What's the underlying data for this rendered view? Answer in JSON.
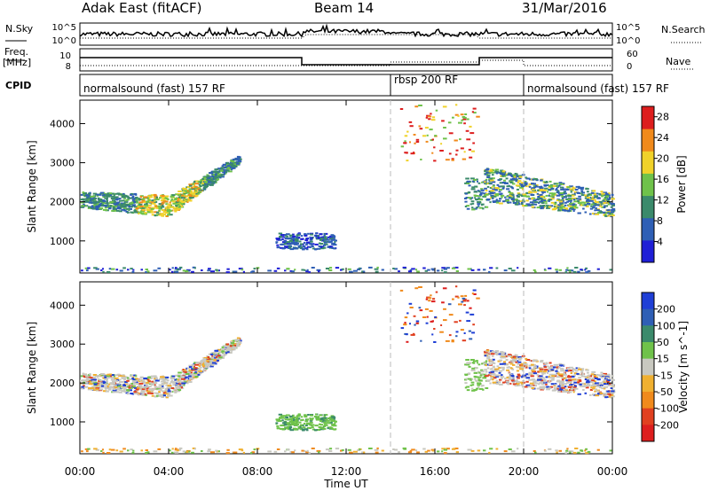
{
  "header": {
    "title": "Adak East (fitACF)",
    "beam": "Beam 14",
    "date": "31/Mar/2016"
  },
  "noise_panel": {
    "left_label": "N.Sky",
    "right_label": "N.Search",
    "left_ticks": [
      "10^5",
      "10^0"
    ],
    "right_ticks": [
      "10^5",
      "10^0"
    ]
  },
  "freq_panel": {
    "left_label_1": "Freq.",
    "left_label_2": "[MHz]",
    "left_ticks": [
      "10",
      "8"
    ],
    "right_label": "Nave",
    "right_ticks": [
      "60",
      "0"
    ]
  },
  "cpid": {
    "label": "CPID",
    "modes": [
      {
        "name": "normalsound (fast) 157 RF",
        "start_hour": 0,
        "end_hour": 14
      },
      {
        "name": "rbsp 200 RF",
        "start_hour": 14,
        "end_hour": 20
      },
      {
        "name": "normalsound (fast) 157 RF",
        "start_hour": 20,
        "end_hour": 24
      }
    ]
  },
  "chart_data": [
    {
      "type": "heatmap",
      "panel": "power",
      "ylabel": "Slant Range [km]",
      "yticks": [
        1000,
        2000,
        3000,
        4000
      ],
      "ylim": [
        180,
        4600
      ],
      "xlim": [
        0,
        24
      ],
      "colorbar": {
        "label": "Power [dB]",
        "ticks": [
          4,
          8,
          12,
          16,
          20,
          24,
          28
        ],
        "range": [
          0,
          30
        ],
        "colors": [
          "#1f1fd6",
          "#2f5fb5",
          "#3b8a6b",
          "#6fc24a",
          "#f0d22a",
          "#f08a1c",
          "#dd1e1e"
        ]
      },
      "echo_regions": [
        {
          "hours": [
            0,
            7.2
          ],
          "range_km": "1700-3200",
          "note": "sloped band rising 2000 to 3000 km"
        },
        {
          "hours": [
            8.8,
            11.5
          ],
          "range_km": "800-1200"
        },
        {
          "hours": [
            14.3,
            17.9
          ],
          "range_km": "3000-4500"
        },
        {
          "hours": [
            17.2,
            18.3
          ],
          "range_km": "1800-2600"
        },
        {
          "hours": [
            18,
            24
          ],
          "range_km": "1600-3000"
        }
      ]
    },
    {
      "type": "heatmap",
      "panel": "velocity",
      "ylabel": "Slant Range [km]",
      "xlabel": "Time UT",
      "yticks": [
        1000,
        2000,
        3000,
        4000
      ],
      "ylim": [
        180,
        4600
      ],
      "xlim": [
        0,
        24
      ],
      "xticks": [
        "00:00",
        "04:00",
        "08:00",
        "12:00",
        "16:00",
        "20:00",
        "00:00"
      ],
      "colorbar": {
        "label": "Velocity [m s^-1]",
        "ticks": [
          200,
          100,
          50,
          15,
          -15,
          -50,
          -100,
          -200
        ],
        "colors": [
          "#1f3fd6",
          "#2f5fb5",
          "#3b8a6b",
          "#6fc24a",
          "#c8c8c0",
          "#f0b030",
          "#f08a1c",
          "#e04020",
          "#dd1e1e"
        ]
      }
    }
  ]
}
